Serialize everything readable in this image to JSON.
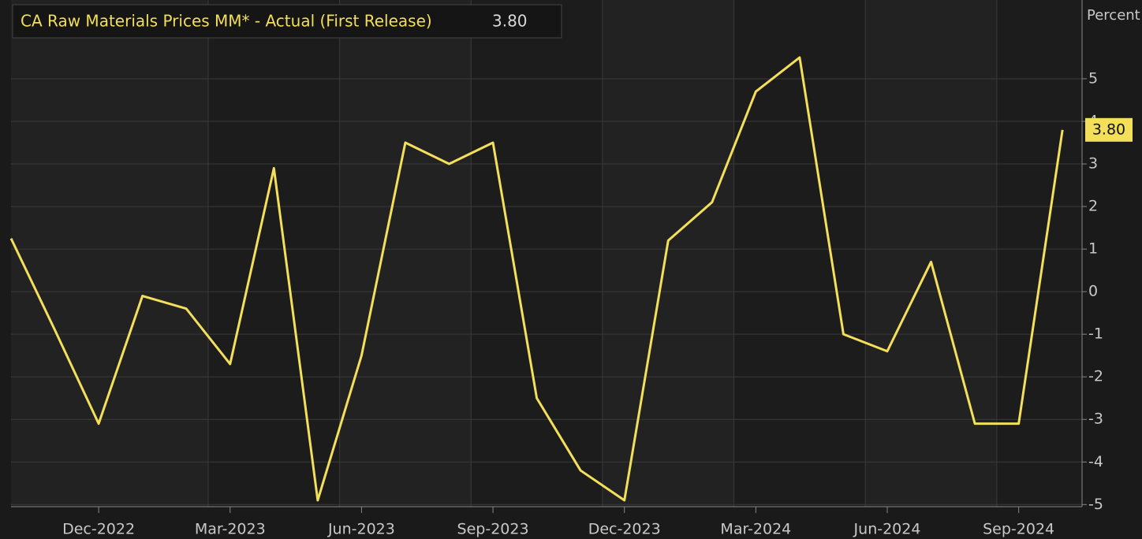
{
  "chart_data": {
    "type": "line",
    "title": "CA Raw Materials Prices MM* - Actual (First Release)",
    "y_label": "Percent",
    "categories": [
      null,
      null,
      "Dec-2022",
      null,
      null,
      "Mar-2023",
      null,
      null,
      "Jun-2023",
      null,
      null,
      "Sep-2023",
      null,
      null,
      "Dec-2023",
      null,
      null,
      "Mar-2024",
      null,
      null,
      "Jun-2024",
      null,
      null,
      "Sep-2024",
      null
    ],
    "series": [
      {
        "name": "CA Raw Materials Prices MM* - Actual (First Release)",
        "color": "#f3df5a",
        "values": [
          1.25,
          -0.9,
          -3.1,
          -0.1,
          -0.4,
          -1.7,
          2.9,
          -4.9,
          -1.5,
          3.5,
          3.0,
          3.5,
          -2.5,
          -4.2,
          -4.9,
          1.2,
          2.1,
          4.7,
          5.5,
          -1.0,
          -1.4,
          0.7,
          -3.1,
          -3.1,
          3.8
        ],
        "value_labels": [
          null,
          null,
          null,
          null,
          null,
          null,
          null,
          null,
          null,
          null,
          null,
          null,
          null,
          null,
          null,
          null,
          null,
          null,
          null,
          null,
          null,
          null,
          null,
          null,
          "3.80"
        ]
      }
    ],
    "ylim": [
      -5.05,
      6.85
    ],
    "yticks": [
      -5,
      -4,
      -3,
      -2,
      -1,
      0,
      1,
      2,
      3,
      4,
      5
    ],
    "grid": true
  }
}
